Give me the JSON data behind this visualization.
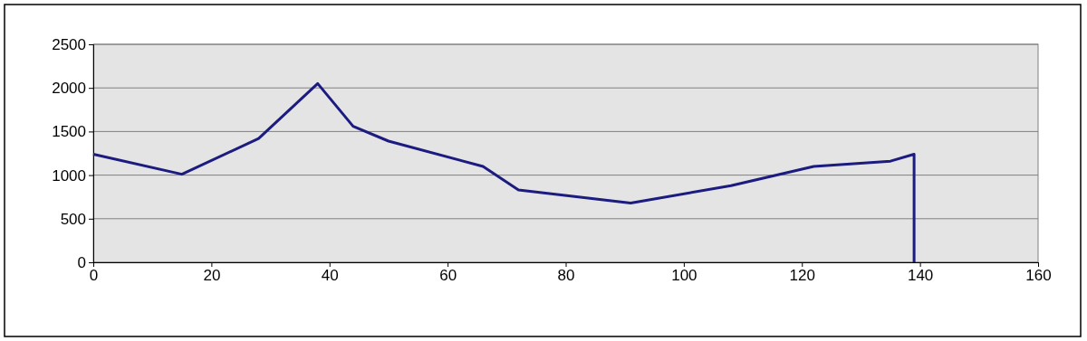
{
  "chart_data": {
    "type": "line",
    "x": [
      0,
      15,
      28,
      38,
      44,
      50,
      66,
      72,
      91,
      108,
      122,
      135,
      139,
      139
    ],
    "series": [
      {
        "color": "#1c1c80",
        "values": [
          1240,
          1010,
          1420,
          2050,
          1560,
          1390,
          1100,
          830,
          680,
          880,
          1100,
          1160,
          1240,
          0
        ]
      }
    ],
    "xlim": [
      0,
      160
    ],
    "xticks": [
      0,
      20,
      40,
      60,
      80,
      100,
      120,
      140,
      160
    ],
    "ylim": [
      0,
      2500
    ],
    "yticks": [
      0,
      500,
      1000,
      1500,
      2000,
      2500
    ],
    "grid": "y",
    "marker": "none",
    "line_style": "solid"
  }
}
